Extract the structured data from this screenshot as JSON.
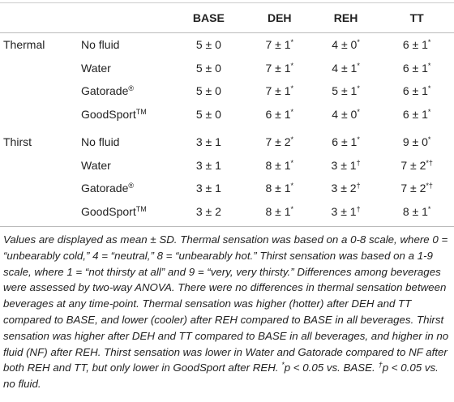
{
  "table": {
    "columns": [
      "BASE",
      "DEH",
      "REH",
      "TT"
    ],
    "rows": [
      {
        "group": "Thermal",
        "beverage": {
          "text": "No fluid"
        },
        "cells": [
          {
            "text": "5 ± 0"
          },
          {
            "text": "7 ± 1",
            "sup": "*"
          },
          {
            "text": "4 ± 0",
            "sup": "*"
          },
          {
            "text": "6 ± 1",
            "sup": "*"
          }
        ]
      },
      {
        "beverage": {
          "text": "Water"
        },
        "cells": [
          {
            "text": "5 ± 0"
          },
          {
            "text": "7 ± 1",
            "sup": "*"
          },
          {
            "text": "4 ± 1",
            "sup": "*"
          },
          {
            "text": "6 ± 1",
            "sup": "*"
          }
        ]
      },
      {
        "beverage": {
          "text": "Gatorade",
          "sup": "®"
        },
        "cells": [
          {
            "text": "5 ± 0"
          },
          {
            "text": "7 ± 1",
            "sup": "*"
          },
          {
            "text": "5 ± 1",
            "sup": "*"
          },
          {
            "text": "6 ± 1",
            "sup": "*"
          }
        ]
      },
      {
        "beverage": {
          "text": "GoodSport",
          "sup": "TM"
        },
        "cells": [
          {
            "text": "5 ± 0"
          },
          {
            "text": "6 ± 1",
            "sup": "*"
          },
          {
            "text": "4 ± 0",
            "sup": "*"
          },
          {
            "text": "6 ± 1",
            "sup": "*"
          }
        ]
      },
      {
        "group": "Thirst",
        "beverage": {
          "text": "No fluid"
        },
        "cells": [
          {
            "text": "3 ± 1"
          },
          {
            "text": "7 ± 2",
            "sup": "*"
          },
          {
            "text": "6 ± 1",
            "sup": "*"
          },
          {
            "text": "9 ± 0",
            "sup": "*"
          }
        ]
      },
      {
        "beverage": {
          "text": "Water"
        },
        "cells": [
          {
            "text": "3 ± 1"
          },
          {
            "text": "8 ± 1",
            "sup": "*"
          },
          {
            "text": "3 ± 1",
            "sup": "†"
          },
          {
            "text": "7 ± 2",
            "sup": "*†"
          }
        ]
      },
      {
        "beverage": {
          "text": "Gatorade",
          "sup": "®"
        },
        "cells": [
          {
            "text": "3 ± 1"
          },
          {
            "text": "8 ± 1",
            "sup": "*"
          },
          {
            "text": "3 ± 2",
            "sup": "†"
          },
          {
            "text": "7 ± 2",
            "sup": "*†"
          }
        ]
      },
      {
        "beverage": {
          "text": "GoodSport",
          "sup": "TM"
        },
        "cells": [
          {
            "text": "3 ± 2"
          },
          {
            "text": "8 ± 1",
            "sup": "*"
          },
          {
            "text": "3 ± 1",
            "sup": "†"
          },
          {
            "text": "8 ± 1",
            "sup": "*"
          }
        ]
      }
    ]
  },
  "footnote": {
    "text": "Values are displayed as mean ± SD. Thermal sensation was based on a 0-8 scale, where 0 = “unbearably cold,” 4 = “neutral,” 8 = “unbearably hot.” Thirst sensation was based on a 1-9 scale, where 1 = “not thirsty at all” and 9 = “very, very thirsty.” Differences among beverages were assessed by two-way ANOVA. There were no differences in thermal sensation between beverages at any time-point. Thermal sensation was higher (hotter) after DEH and TT compared to BASE, and lower (cooler) after REH compared to BASE in all beverages. Thirst sensation was higher after DEH and TT compared to BASE in all beverages, and higher in no fluid (NF) after REH. Thirst sensation was lower in Water and Gatorade compared to NF after both REH and TT, but only lower in GoodSport after REH.",
    "significance": [
      {
        "sup": "*",
        "text": "p < 0.05 vs. BASE."
      },
      {
        "sup": "†",
        "text": "p < 0.05 vs. no fluid."
      }
    ]
  }
}
